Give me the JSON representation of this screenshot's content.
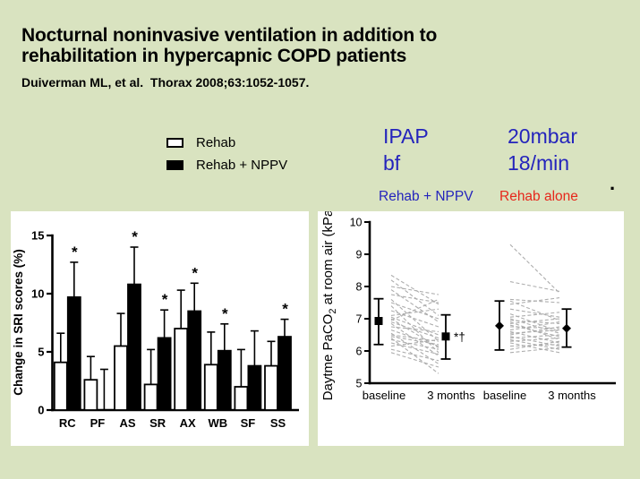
{
  "slide": {
    "title_line1": "Nocturnal noninvasive ventilation in addition to",
    "title_line2": "rehabilitation in hypercapnic COPD patients",
    "citation": "Duiverman ML, et al.  Thorax 2008;63:1052-1057."
  },
  "legend": {
    "items": [
      {
        "label": "Rehab",
        "swatch": "#ffffff"
      },
      {
        "label": "Rehab + NPPV",
        "swatch": "#000000"
      }
    ]
  },
  "ventilator_settings": {
    "params": [
      "IPAP",
      "bf"
    ],
    "values": [
      "20mbar",
      "18/min"
    ]
  },
  "group_labels": {
    "nppv": "Rehab + NPPV",
    "rehab": "Rehab alone"
  },
  "stray_dot": ".",
  "colors": {
    "background": "#d9e3c0",
    "blue": "#2424bc",
    "red": "#e6271b",
    "bar_fill_rehab": "#ffffff",
    "bar_fill_nppv": "#000000",
    "spaghetti_gray": "#adadad"
  },
  "chart_data": [
    {
      "type": "bar",
      "title": "",
      "xlabel": "",
      "ylabel": "Change in SRI scores (%)",
      "categories": [
        "RC",
        "PF",
        "AS",
        "SR",
        "AX",
        "WB",
        "SF",
        "SS"
      ],
      "series": [
        {
          "name": "Rehab",
          "fill": "#ffffff",
          "values": [
            4.1,
            2.6,
            5.5,
            2.2,
            7.0,
            3.9,
            2.0,
            3.8
          ],
          "err_top": [
            6.6,
            4.6,
            8.3,
            5.2,
            10.3,
            6.7,
            5.2,
            5.9
          ]
        },
        {
          "name": "Rehab + NPPV",
          "fill": "#000000",
          "values": [
            9.7,
            0,
            10.8,
            6.2,
            8.5,
            5.1,
            3.8,
            6.3
          ],
          "err_top": [
            12.7,
            3.5,
            14.0,
            8.6,
            10.9,
            7.4,
            6.8,
            7.8
          ]
        }
      ],
      "sig_markers": [
        "*",
        "",
        "*",
        "*",
        "*",
        "*",
        "",
        "*"
      ],
      "ylim": [
        0,
        15
      ],
      "yticks": [
        0,
        5,
        10,
        15
      ],
      "grid": false,
      "legend_position": "outside-top"
    },
    {
      "type": "paired-line",
      "title": "",
      "ylabel_pre": "Daytme PaCO",
      "ylabel_sub": "2",
      "ylabel_post": " at room air (kPa)",
      "ylim": [
        5,
        10
      ],
      "yticks": [
        5,
        6,
        7,
        8,
        9,
        10
      ],
      "x_labels": [
        "baseline",
        "3 months",
        "baseline",
        "3 months"
      ],
      "summary_points": [
        {
          "group": "Rehab + NPPV",
          "x_label": "baseline",
          "marker": "square",
          "mean": 6.93,
          "lo": 6.2,
          "hi": 7.62,
          "annotation": ""
        },
        {
          "group": "Rehab + NPPV",
          "x_label": "3 months",
          "marker": "square",
          "mean": 6.45,
          "lo": 5.75,
          "hi": 7.12,
          "annotation": "*†"
        },
        {
          "group": "Rehab alone",
          "x_label": "baseline",
          "marker": "diamond",
          "mean": 6.78,
          "lo": 6.03,
          "hi": 7.55,
          "annotation": ""
        },
        {
          "group": "Rehab alone",
          "x_label": "3 months",
          "marker": "diamond",
          "mean": 6.7,
          "lo": 6.12,
          "hi": 7.3,
          "annotation": ""
        }
      ],
      "individual_lines": {
        "rehab_nppv": [
          [
            8.35,
            7.45
          ],
          [
            8.2,
            7.1
          ],
          [
            8.0,
            7.75
          ],
          [
            7.9,
            6.9
          ],
          [
            7.75,
            7.5
          ],
          [
            7.6,
            6.3
          ],
          [
            7.5,
            7.0
          ],
          [
            7.4,
            5.95
          ],
          [
            7.25,
            6.75
          ],
          [
            7.1,
            7.3
          ],
          [
            7.05,
            6.5
          ],
          [
            7.0,
            6.1
          ],
          [
            6.95,
            7.6
          ],
          [
            6.9,
            6.4
          ],
          [
            6.85,
            5.85
          ],
          [
            6.75,
            6.6
          ],
          [
            6.65,
            6.15
          ],
          [
            6.55,
            5.6
          ],
          [
            6.5,
            6.3
          ],
          [
            6.4,
            5.3
          ],
          [
            6.35,
            6.05
          ],
          [
            6.25,
            5.9
          ],
          [
            6.15,
            6.35
          ],
          [
            6.05,
            5.7
          ],
          [
            5.95,
            5.5
          ],
          [
            6.45,
            6.2
          ]
        ],
        "rehab_alone": [
          [
            9.3,
            7.8
          ],
          [
            8.15,
            7.85
          ],
          [
            7.6,
            7.5
          ],
          [
            7.55,
            6.95
          ],
          [
            7.45,
            7.65
          ],
          [
            7.3,
            7.05
          ],
          [
            7.15,
            6.6
          ],
          [
            7.05,
            7.2
          ],
          [
            7.0,
            6.55
          ],
          [
            6.95,
            6.85
          ],
          [
            6.9,
            6.35
          ],
          [
            6.85,
            7.0
          ],
          [
            6.8,
            6.45
          ],
          [
            6.75,
            6.7
          ],
          [
            6.65,
            6.9
          ],
          [
            6.6,
            6.25
          ],
          [
            6.55,
            6.65
          ],
          [
            6.45,
            6.15
          ],
          [
            6.4,
            6.5
          ],
          [
            6.35,
            6.05
          ],
          [
            6.3,
            6.4
          ],
          [
            6.25,
            5.95
          ],
          [
            6.15,
            6.2
          ],
          [
            6.05,
            6.3
          ],
          [
            5.95,
            6.1
          ],
          [
            6.5,
            6.75
          ]
        ]
      },
      "grid": false
    }
  ]
}
